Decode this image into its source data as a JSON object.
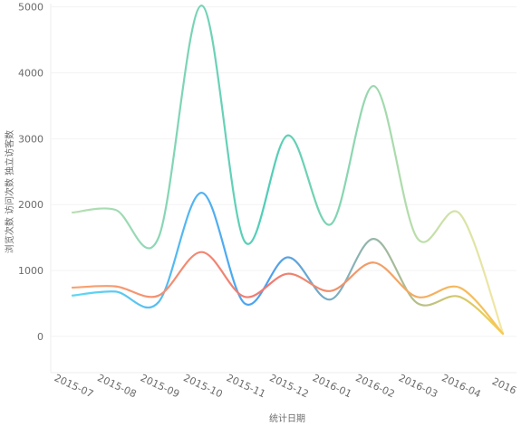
{
  "chart_data": {
    "type": "line",
    "title": "",
    "xlabel": "统计日期",
    "ylabel": "浏览次数 访问次数 独立访客数",
    "categories": [
      "2015-07",
      "2015-08",
      "2015-09",
      "2015-10",
      "2015-11",
      "2015-12",
      "2016-01",
      "2016-02",
      "2016-03",
      "2016-04",
      "2016"
    ],
    "ylim": [
      -550,
      5050
    ],
    "yticks": [
      0,
      1000,
      2000,
      3000,
      4000,
      5000
    ],
    "grid": true,
    "smooth": true,
    "series": [
      {
        "values": [
          1880,
          1920,
          1500,
          5020,
          1440,
          3050,
          1700,
          3800,
          1500,
          1860,
          50
        ],
        "colors": [
          "#b9dfb2",
          "#50cdb8",
          "#f5e7a2"
        ]
      },
      {
        "values": [
          620,
          680,
          520,
          2180,
          500,
          1200,
          560,
          1480,
          510,
          600,
          40
        ],
        "colors": [
          "#5fd7f2",
          "#4a9ff0",
          "#f3d14f"
        ]
      },
      {
        "values": [
          740,
          760,
          620,
          1280,
          600,
          950,
          690,
          1120,
          600,
          740,
          40
        ],
        "colors": [
          "#f8a36f",
          "#ee7a74",
          "#f7c857"
        ]
      }
    ]
  }
}
